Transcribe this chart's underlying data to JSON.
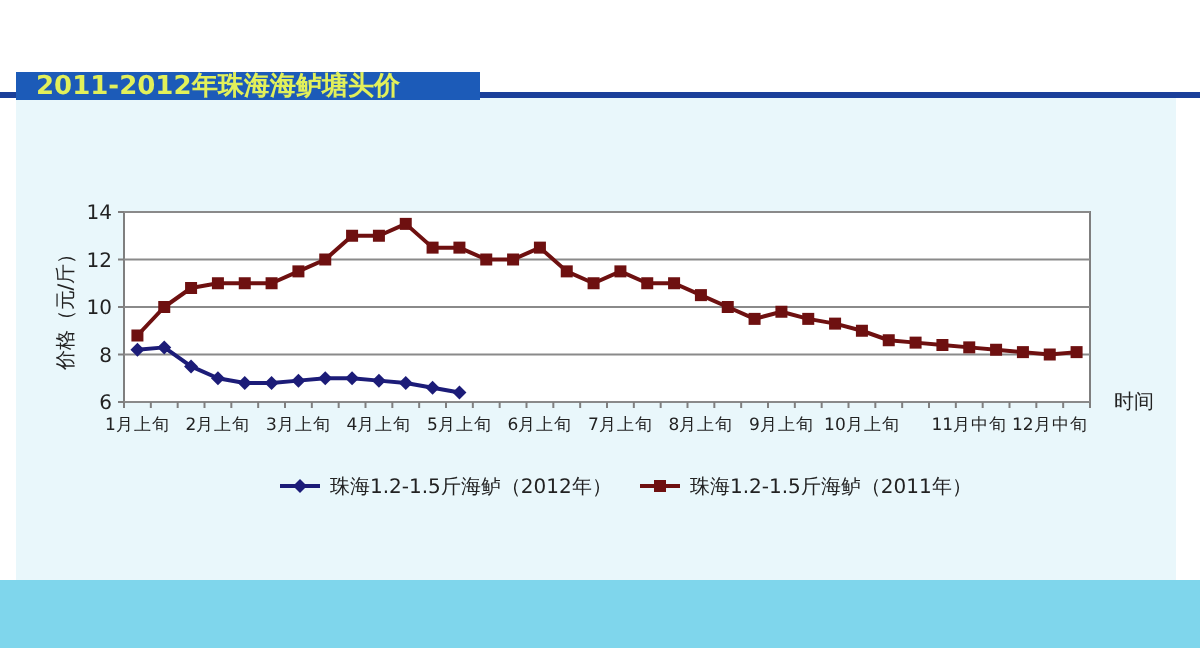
{
  "chart_data": {
    "type": "line",
    "title": "2011-2012年珠海海鲈塘头价",
    "ylabel": "价格（元/斤）",
    "xlabel": "时间",
    "categories": [
      "1月上旬",
      null,
      null,
      "2月上旬",
      null,
      null,
      "3月上旬",
      null,
      null,
      "4月上旬",
      null,
      null,
      "5月上旬",
      null,
      null,
      "6月上旬",
      null,
      null,
      "7月上旬",
      null,
      null,
      "8月上旬",
      null,
      null,
      "9月上旬",
      null,
      null,
      "10月上旬",
      null,
      null,
      null,
      "11月中旬",
      null,
      null,
      "12月中旬",
      null
    ],
    "series": [
      {
        "name": "珠海1.2-1.5斤海鲈（2012年）",
        "color": "#1c1c78",
        "marker": "diamond",
        "values": [
          8.2,
          8.3,
          7.5,
          7.0,
          6.8,
          6.8,
          6.9,
          7.0,
          7.0,
          6.9,
          6.8,
          6.6,
          6.4,
          null,
          null,
          null,
          null,
          null,
          null,
          null,
          null,
          null,
          null,
          null,
          null,
          null,
          null,
          null,
          null,
          null,
          null,
          null,
          null,
          null,
          null,
          null
        ]
      },
      {
        "name": "珠海1.2-1.5斤海鲈（2011年）",
        "color": "#6e1010",
        "marker": "square",
        "values": [
          8.8,
          10.0,
          10.8,
          11.0,
          11.0,
          11.0,
          11.5,
          12.0,
          13.0,
          13.0,
          13.5,
          12.5,
          12.5,
          12.0,
          12.0,
          12.5,
          11.5,
          11.0,
          11.5,
          11.0,
          11.0,
          10.5,
          10.0,
          9.5,
          9.8,
          9.5,
          9.3,
          9.0,
          8.6,
          8.5,
          8.4,
          8.3,
          8.2,
          8.1,
          8.0,
          8.1
        ]
      }
    ],
    "ylim": [
      6,
      14
    ],
    "yticks": [
      6,
      8,
      10,
      12,
      14
    ],
    "grid": "y",
    "legend": "bottom"
  }
}
